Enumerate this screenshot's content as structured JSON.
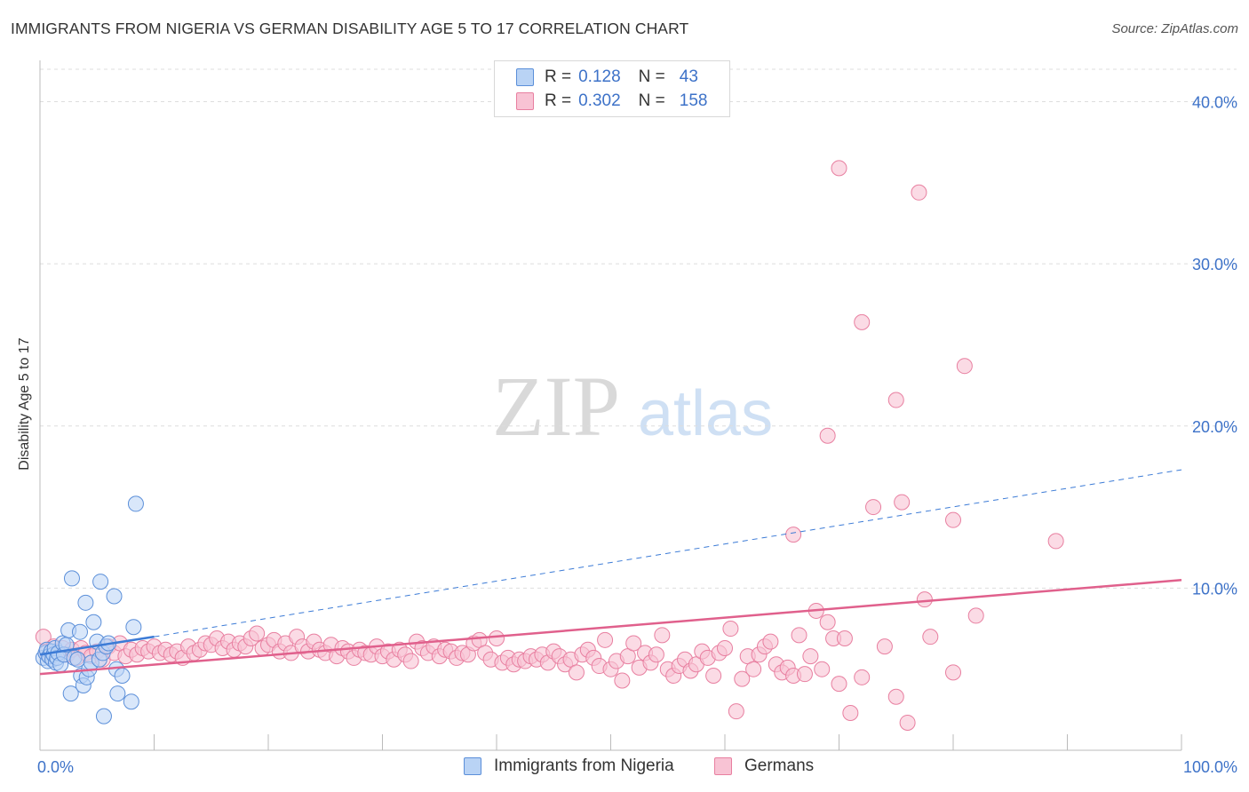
{
  "header": {
    "title": "IMMIGRANTS FROM NIGERIA VS GERMAN DISABILITY AGE 5 TO 17 CORRELATION CHART",
    "source": "Source: ZipAtlas.com"
  },
  "watermark": {
    "zip": "ZIP",
    "atlas": "atlas"
  },
  "legend": {
    "r_label": "R =",
    "n_label": "N =",
    "series": [
      {
        "r": "0.128",
        "n": "43"
      },
      {
        "r": "0.302",
        "n": "158"
      }
    ]
  },
  "colors": {
    "blue_fill": "#b9d3f5",
    "blue_stroke": "#5b8fd9",
    "blue_line": "#3c7bd6",
    "pink_fill": "#f8c3d4",
    "pink_stroke": "#e87fa0",
    "pink_line": "#e0608c",
    "tick_label": "#3d72c8"
  },
  "chart_data": {
    "type": "scatter",
    "title": "IMMIGRANTS FROM NIGERIA VS GERMAN DISABILITY AGE 5 TO 17 CORRELATION CHART",
    "xlabel": "",
    "ylabel": "Disability Age 5 to 17",
    "xlim": [
      0,
      100
    ],
    "ylim": [
      0,
      42
    ],
    "x_tick_labels": [
      {
        "value": 0,
        "label": "0.0%"
      },
      {
        "value": 100,
        "label": "100.0%"
      }
    ],
    "y_tick_labels": [
      {
        "value": 10,
        "label": "10.0%"
      },
      {
        "value": 20,
        "label": "20.0%"
      },
      {
        "value": 30,
        "label": "30.0%"
      },
      {
        "value": 40,
        "label": "40.0%"
      }
    ],
    "grid": true,
    "legend_position": "top-center",
    "series": [
      {
        "name": "Immigrants from Nigeria",
        "r": 0.128,
        "n": 43,
        "trend": {
          "x0": 0,
          "y0": 5.9,
          "x1": 10,
          "y1": 7.0,
          "style": "solid"
        },
        "trend_extended": {
          "x0": 10,
          "y0": 7.0,
          "x1": 100,
          "y1": 17.3,
          "style": "dashed"
        },
        "points": [
          [
            0.3,
            5.7
          ],
          [
            0.5,
            6.0
          ],
          [
            0.6,
            6.2
          ],
          [
            0.7,
            5.5
          ],
          [
            0.8,
            5.8
          ],
          [
            1.0,
            6.1
          ],
          [
            1.1,
            5.6
          ],
          [
            1.2,
            5.9
          ],
          [
            1.3,
            6.3
          ],
          [
            1.4,
            5.4
          ],
          [
            1.5,
            5.7
          ],
          [
            1.6,
            6.0
          ],
          [
            1.8,
            5.3
          ],
          [
            2.0,
            6.6
          ],
          [
            2.1,
            5.9
          ],
          [
            2.3,
            6.5
          ],
          [
            2.5,
            7.4
          ],
          [
            2.7,
            3.5
          ],
          [
            2.8,
            10.6
          ],
          [
            3.0,
            5.7
          ],
          [
            3.3,
            5.6
          ],
          [
            3.5,
            7.3
          ],
          [
            3.6,
            4.6
          ],
          [
            3.8,
            4.0
          ],
          [
            4.0,
            9.1
          ],
          [
            4.1,
            4.5
          ],
          [
            4.3,
            5.0
          ],
          [
            4.5,
            5.4
          ],
          [
            4.7,
            7.9
          ],
          [
            5.0,
            6.7
          ],
          [
            5.2,
            5.6
          ],
          [
            5.3,
            10.4
          ],
          [
            5.5,
            6.0
          ],
          [
            5.6,
            2.1
          ],
          [
            5.8,
            6.4
          ],
          [
            6.0,
            6.6
          ],
          [
            6.5,
            9.5
          ],
          [
            6.7,
            5.0
          ],
          [
            6.8,
            3.5
          ],
          [
            7.2,
            4.6
          ],
          [
            8.0,
            3.0
          ],
          [
            8.2,
            7.6
          ],
          [
            8.4,
            15.2
          ]
        ]
      },
      {
        "name": "Germans",
        "r": 0.302,
        "n": 158,
        "trend": {
          "x0": 0,
          "y0": 4.7,
          "x1": 100,
          "y1": 10.5,
          "style": "solid"
        },
        "points": [
          [
            0.3,
            7.0
          ],
          [
            0.6,
            6.1
          ],
          [
            0.9,
            5.8
          ],
          [
            1.2,
            6.4
          ],
          [
            1.6,
            6.0
          ],
          [
            2.0,
            6.3
          ],
          [
            2.4,
            5.9
          ],
          [
            2.8,
            6.2
          ],
          [
            3.2,
            5.7
          ],
          [
            3.6,
            6.3
          ],
          [
            4.0,
            6.0
          ],
          [
            4.5,
            5.8
          ],
          [
            5.0,
            6.1
          ],
          [
            5.5,
            5.6
          ],
          [
            6.0,
            6.4
          ],
          [
            6.5,
            6.0
          ],
          [
            7.0,
            6.6
          ],
          [
            7.5,
            5.8
          ],
          [
            8.0,
            6.2
          ],
          [
            8.5,
            5.9
          ],
          [
            9.0,
            6.3
          ],
          [
            9.5,
            6.1
          ],
          [
            10.0,
            6.4
          ],
          [
            10.5,
            6.0
          ],
          [
            11.0,
            6.2
          ],
          [
            11.5,
            5.9
          ],
          [
            12.0,
            6.1
          ],
          [
            12.5,
            5.7
          ],
          [
            13.0,
            6.4
          ],
          [
            13.5,
            6.0
          ],
          [
            14.0,
            6.2
          ],
          [
            14.5,
            6.6
          ],
          [
            15.0,
            6.5
          ],
          [
            15.5,
            6.9
          ],
          [
            16.0,
            6.3
          ],
          [
            16.5,
            6.7
          ],
          [
            17.0,
            6.2
          ],
          [
            17.5,
            6.6
          ],
          [
            18.0,
            6.4
          ],
          [
            18.5,
            6.9
          ],
          [
            19.0,
            7.2
          ],
          [
            19.5,
            6.3
          ],
          [
            20.0,
            6.5
          ],
          [
            20.5,
            6.8
          ],
          [
            21.0,
            6.1
          ],
          [
            21.5,
            6.6
          ],
          [
            22.0,
            6.0
          ],
          [
            22.5,
            7.0
          ],
          [
            23.0,
            6.4
          ],
          [
            23.5,
            6.1
          ],
          [
            24.0,
            6.7
          ],
          [
            24.5,
            6.2
          ],
          [
            25.0,
            6.0
          ],
          [
            25.5,
            6.5
          ],
          [
            26.0,
            5.8
          ],
          [
            26.5,
            6.3
          ],
          [
            27.0,
            6.1
          ],
          [
            27.5,
            5.7
          ],
          [
            28.0,
            6.2
          ],
          [
            28.5,
            6.0
          ],
          [
            29.0,
            5.9
          ],
          [
            29.5,
            6.4
          ],
          [
            30.0,
            5.8
          ],
          [
            30.5,
            6.1
          ],
          [
            31.0,
            5.6
          ],
          [
            31.5,
            6.2
          ],
          [
            32.0,
            5.9
          ],
          [
            32.5,
            5.5
          ],
          [
            33.0,
            6.7
          ],
          [
            33.5,
            6.3
          ],
          [
            34.0,
            6.0
          ],
          [
            34.5,
            6.4
          ],
          [
            35.0,
            5.8
          ],
          [
            35.5,
            6.2
          ],
          [
            36.0,
            6.1
          ],
          [
            36.5,
            5.7
          ],
          [
            37.0,
            6.0
          ],
          [
            37.5,
            5.9
          ],
          [
            38.0,
            6.6
          ],
          [
            38.5,
            6.8
          ],
          [
            39.0,
            6.0
          ],
          [
            39.5,
            5.6
          ],
          [
            40.0,
            6.9
          ],
          [
            40.5,
            5.4
          ],
          [
            41.0,
            5.7
          ],
          [
            41.5,
            5.3
          ],
          [
            42.0,
            5.6
          ],
          [
            42.5,
            5.5
          ],
          [
            43.0,
            5.8
          ],
          [
            43.5,
            5.6
          ],
          [
            44.0,
            5.9
          ],
          [
            44.5,
            5.4
          ],
          [
            45.0,
            6.1
          ],
          [
            45.5,
            5.8
          ],
          [
            46.0,
            5.3
          ],
          [
            46.5,
            5.6
          ],
          [
            47.0,
            4.8
          ],
          [
            47.5,
            5.9
          ],
          [
            48.0,
            6.2
          ],
          [
            48.5,
            5.7
          ],
          [
            49.0,
            5.2
          ],
          [
            49.5,
            6.8
          ],
          [
            50.0,
            5.0
          ],
          [
            50.5,
            5.5
          ],
          [
            51.0,
            4.3
          ],
          [
            51.5,
            5.8
          ],
          [
            52.0,
            6.6
          ],
          [
            52.5,
            5.1
          ],
          [
            53.0,
            6.0
          ],
          [
            53.5,
            5.4
          ],
          [
            54.0,
            5.9
          ],
          [
            54.5,
            7.1
          ],
          [
            55.0,
            5.0
          ],
          [
            55.5,
            4.6
          ],
          [
            56.0,
            5.2
          ],
          [
            56.5,
            5.6
          ],
          [
            57.0,
            4.9
          ],
          [
            57.5,
            5.3
          ],
          [
            58.0,
            6.1
          ],
          [
            58.5,
            5.7
          ],
          [
            59.0,
            4.6
          ],
          [
            59.5,
            6.0
          ],
          [
            60.0,
            6.3
          ],
          [
            60.5,
            7.5
          ],
          [
            61.0,
            2.4
          ],
          [
            61.5,
            4.4
          ],
          [
            62.0,
            5.8
          ],
          [
            62.5,
            5.0
          ],
          [
            63.0,
            5.9
          ],
          [
            63.5,
            6.4
          ],
          [
            64.0,
            6.7
          ],
          [
            64.5,
            5.3
          ],
          [
            65.0,
            4.8
          ],
          [
            65.5,
            5.1
          ],
          [
            66.0,
            4.6
          ],
          [
            66.5,
            7.1
          ],
          [
            67.0,
            4.7
          ],
          [
            67.5,
            5.8
          ],
          [
            68.0,
            8.6
          ],
          [
            68.5,
            5.0
          ],
          [
            69.0,
            7.9
          ],
          [
            69.5,
            6.9
          ],
          [
            70.0,
            4.1
          ],
          [
            70.5,
            6.9
          ],
          [
            71.0,
            2.3
          ],
          [
            72.0,
            4.5
          ],
          [
            74.0,
            6.4
          ],
          [
            75.0,
            3.3
          ],
          [
            76.0,
            1.7
          ],
          [
            78.0,
            7.0
          ],
          [
            80.0,
            4.8
          ],
          [
            82.0,
            8.3
          ],
          [
            66.0,
            13.3
          ],
          [
            73.0,
            15.0
          ],
          [
            75.5,
            15.3
          ],
          [
            80.0,
            14.2
          ],
          [
            89.0,
            12.9
          ],
          [
            69.0,
            19.4
          ],
          [
            75.0,
            21.6
          ],
          [
            81.0,
            23.7
          ],
          [
            72.0,
            26.4
          ],
          [
            70.0,
            35.9
          ],
          [
            77.0,
            34.4
          ],
          [
            77.5,
            9.3
          ]
        ]
      }
    ]
  }
}
